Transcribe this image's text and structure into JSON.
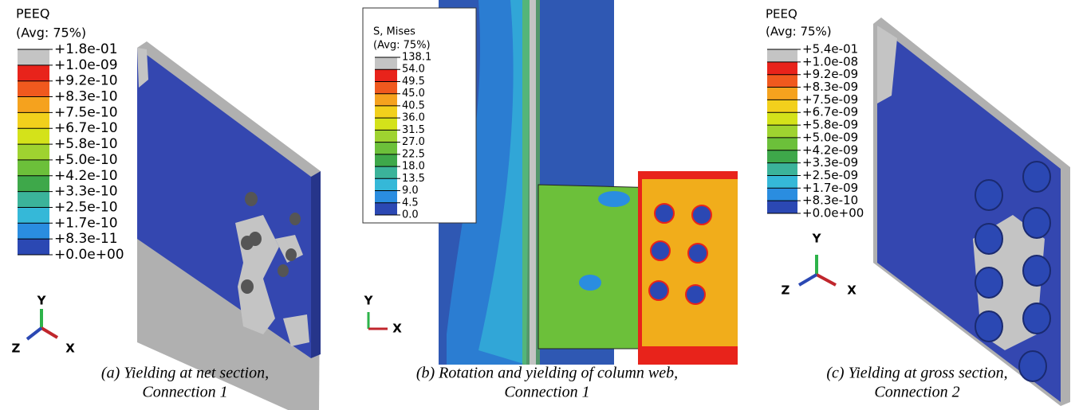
{
  "panels": [
    {
      "legend": {
        "title": "PEEQ",
        "subtitle": "(Avg: 75%)",
        "labels": [
          "+1.8e-01",
          "+1.0e-09",
          "+9.2e-10",
          "+8.3e-10",
          "+7.5e-10",
          "+6.7e-10",
          "+5.8e-10",
          "+5.0e-10",
          "+4.2e-10",
          "+3.3e-10",
          "+2.5e-10",
          "+1.7e-10",
          "+8.3e-11",
          "+0.0e+00"
        ],
        "colors": [
          "#c4c4c4",
          "#e8231b",
          "#f0591e",
          "#f5a21e",
          "#f2d01c",
          "#d4e21a",
          "#9fd330",
          "#6cc03a",
          "#3ea84a",
          "#3bb39a",
          "#35b8d8",
          "#2a8de0",
          "#2b48b3"
        ]
      },
      "axes": {
        "y": "Y",
        "z": "Z",
        "x": "X"
      },
      "caption": [
        "(a)  Yielding at net section,",
        "Connection 1"
      ]
    },
    {
      "legend": {
        "title": "S, Mises",
        "subtitle": "(Avg: 75%)",
        "labels": [
          "138.1",
          "54.0",
          "49.5",
          "45.0",
          "40.5",
          "36.0",
          "31.5",
          "27.0",
          "22.5",
          "18.0",
          "13.5",
          "9.0",
          "4.5",
          "0.0"
        ],
        "colors": [
          "#c4c4c4",
          "#e8231b",
          "#f0591e",
          "#f5a21e",
          "#f2d01c",
          "#d4e21a",
          "#9fd330",
          "#6cc03a",
          "#3ea84a",
          "#3bb39a",
          "#35b8d8",
          "#2a8de0",
          "#2b48b3"
        ]
      },
      "axes": {
        "y": "Y",
        "x": "X"
      },
      "caption": [
        "(b)  Rotation and yielding of column web,",
        "Connection 1"
      ]
    },
    {
      "legend": {
        "title": "PEEQ",
        "subtitle": "(Avg: 75%)",
        "labels": [
          "+5.4e-01",
          "+1.0e-08",
          "+9.2e-09",
          "+8.3e-09",
          "+7.5e-09",
          "+6.7e-09",
          "+5.8e-09",
          "+5.0e-09",
          "+4.2e-09",
          "+3.3e-09",
          "+2.5e-09",
          "+1.7e-09",
          "+8.3e-10",
          "+0.0e+00"
        ],
        "colors": [
          "#c4c4c4",
          "#e8231b",
          "#f0591e",
          "#f5a21e",
          "#f2d01c",
          "#d4e21a",
          "#9fd330",
          "#6cc03a",
          "#3ea84a",
          "#3bb39a",
          "#35b8d8",
          "#2a8de0",
          "#2b48b3"
        ]
      },
      "axes": {
        "y": "Y",
        "z": "Z",
        "x": "X"
      },
      "caption": [
        "(c)  Yielding at gross section,",
        "Connection 2"
      ]
    }
  ]
}
